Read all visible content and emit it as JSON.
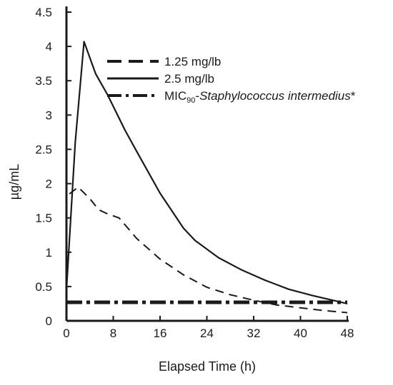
{
  "chart_data": {
    "type": "line",
    "xlabel": "Elapsed Time (h)",
    "ylabel": "µg/mL",
    "xlim": [
      0,
      48
    ],
    "ylim": [
      0,
      4.5
    ],
    "x_ticks": [
      "0",
      "8",
      "16",
      "24",
      "32",
      "40",
      "48"
    ],
    "y_ticks": [
      "0",
      "0.5",
      "1",
      "1.5",
      "2",
      "2.5",
      "3",
      "3.5",
      "4",
      "4.5"
    ],
    "grid": false,
    "legend_position": "top-right",
    "series": [
      {
        "name": "1.25 mg/lb",
        "style": "dashed",
        "color": "#1a1a1a",
        "points": [
          [
            0.5,
            1.85
          ],
          [
            2,
            1.95
          ],
          [
            4,
            1.78
          ],
          [
            5.5,
            1.62
          ],
          [
            7,
            1.56
          ],
          [
            9,
            1.5
          ],
          [
            12,
            1.2
          ],
          [
            16,
            0.9
          ],
          [
            20,
            0.67
          ],
          [
            24,
            0.49
          ],
          [
            28,
            0.38
          ],
          [
            32,
            0.3
          ],
          [
            36,
            0.23
          ],
          [
            40,
            0.19
          ],
          [
            44,
            0.15
          ],
          [
            48,
            0.12
          ]
        ]
      },
      {
        "name": "2.5 mg/lb",
        "style": "solid",
        "color": "#1a1a1a",
        "points": [
          [
            0,
            0.45
          ],
          [
            1.5,
            2.6
          ],
          [
            3,
            4.07
          ],
          [
            5,
            3.6
          ],
          [
            7,
            3.3
          ],
          [
            10,
            2.78
          ],
          [
            12,
            2.47
          ],
          [
            16,
            1.86
          ],
          [
            20,
            1.35
          ],
          [
            22,
            1.17
          ],
          [
            26,
            0.92
          ],
          [
            30,
            0.74
          ],
          [
            34,
            0.59
          ],
          [
            38,
            0.46
          ],
          [
            42,
            0.37
          ],
          [
            46,
            0.29
          ],
          [
            48,
            0.25
          ]
        ]
      },
      {
        "name_main": "MIC",
        "name_sub": "90",
        "name_dash": "-",
        "name_italic": "Staphylococcus intermedius",
        "name_suffix": "*",
        "style": "dash-dot",
        "color": "#1a1a1a",
        "points": [
          [
            0,
            0.27
          ],
          [
            48,
            0.27
          ]
        ]
      }
    ]
  }
}
